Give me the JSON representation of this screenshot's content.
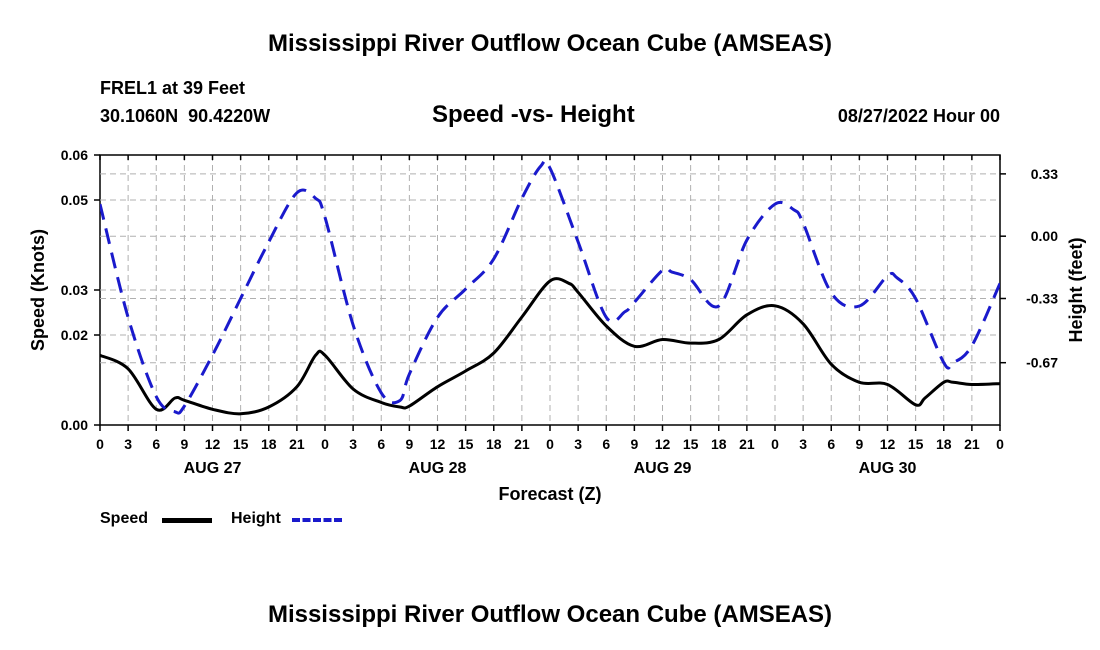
{
  "header": {
    "title": "Mississippi River Outflow Ocean Cube (AMSEAS)",
    "station": "FREL1 at 39 Feet",
    "coords": "30.1060N  90.4220W",
    "chart_title": "Speed -vs- Height",
    "datetime": "08/27/2022 Hour 00"
  },
  "footer": {
    "title": "Mississippi River Outflow Ocean Cube (AMSEAS)"
  },
  "legend": {
    "speed_label": "Speed",
    "height_label": "Height"
  },
  "colors": {
    "speed": "#000000",
    "height": "#1a1acc",
    "grid": "#b0b0b0"
  },
  "chart_data": {
    "type": "line",
    "title": "Speed -vs- Height",
    "xlabel": "Forecast (Z)",
    "ylabel_left": "Speed (Knots)",
    "ylabel_right": "Height (feet)",
    "x_range_hours": [
      0,
      96
    ],
    "x_tick_step_hours": 3,
    "x_tick_labels": [
      "0",
      "3",
      "6",
      "9",
      "12",
      "15",
      "18",
      "21",
      "0",
      "3",
      "6",
      "9",
      "12",
      "15",
      "18",
      "21",
      "0",
      "3",
      "6",
      "9",
      "12",
      "15",
      "18",
      "21",
      "0",
      "3",
      "6",
      "9",
      "12",
      "15",
      "18",
      "21",
      "0"
    ],
    "day_labels": [
      {
        "label": "AUG 27",
        "hour": 12
      },
      {
        "label": "AUG 28",
        "hour": 36
      },
      {
        "label": "AUG 29",
        "hour": 60
      },
      {
        "label": "AUG 30",
        "hour": 84
      }
    ],
    "y_left": {
      "range": [
        0.0,
        0.06
      ],
      "ticks": [
        0.0,
        0.02,
        0.03,
        0.05,
        0.06
      ],
      "tick_labels": [
        "0.00",
        "0.02",
        "0.03",
        "0.05",
        "0.06"
      ]
    },
    "y_right": {
      "range": [
        -1.0,
        0.43
      ],
      "ticks": [
        -0.67,
        -0.33,
        0.0,
        0.33
      ],
      "tick_labels": [
        "-0.67",
        "-0.33",
        "0.00",
        "0.33"
      ]
    },
    "grid": true,
    "series": [
      {
        "name": "Speed",
        "axis": "left",
        "style": "solid",
        "x": [
          0,
          3,
          6,
          8,
          9,
          12,
          15,
          18,
          21,
          23,
          24,
          27,
          30,
          32,
          33,
          36,
          39,
          42,
          45,
          48,
          50,
          51,
          54,
          57,
          60,
          63,
          66,
          69,
          72,
          75,
          78,
          81,
          84,
          87,
          88,
          90,
          91,
          93,
          96
        ],
        "y": [
          0.0155,
          0.0125,
          0.0035,
          0.006,
          0.0055,
          0.0035,
          0.0025,
          0.004,
          0.0085,
          0.0155,
          0.0155,
          0.008,
          0.005,
          0.004,
          0.0042,
          0.0085,
          0.012,
          0.016,
          0.024,
          0.032,
          0.0315,
          0.0295,
          0.022,
          0.0175,
          0.019,
          0.0182,
          0.019,
          0.0245,
          0.0265,
          0.0225,
          0.0135,
          0.0095,
          0.009,
          0.0045,
          0.006,
          0.0095,
          0.0095,
          0.009,
          0.0092
        ]
      },
      {
        "name": "Height",
        "axis": "right",
        "style": "dashed",
        "x": [
          0,
          3,
          6,
          8,
          9,
          12,
          15,
          18,
          21,
          23,
          24,
          27,
          30,
          32,
          33,
          36,
          39,
          42,
          45,
          47,
          48,
          51,
          54,
          56,
          57,
          60,
          61,
          63,
          66,
          69,
          72,
          74,
          75,
          78,
          81,
          84,
          85,
          87,
          90,
          91,
          93,
          96
        ],
        "y": [
          0.17,
          -0.43,
          -0.85,
          -0.93,
          -0.9,
          -0.63,
          -0.33,
          -0.03,
          0.23,
          0.2,
          0.1,
          -0.47,
          -0.83,
          -0.87,
          -0.73,
          -0.43,
          -0.28,
          -0.12,
          0.2,
          0.37,
          0.36,
          -0.03,
          -0.43,
          -0.4,
          -0.35,
          -0.18,
          -0.19,
          -0.23,
          -0.37,
          -0.02,
          0.17,
          0.14,
          0.07,
          -0.3,
          -0.37,
          -0.21,
          -0.22,
          -0.33,
          -0.67,
          -0.67,
          -0.58,
          -0.25
        ]
      }
    ]
  }
}
